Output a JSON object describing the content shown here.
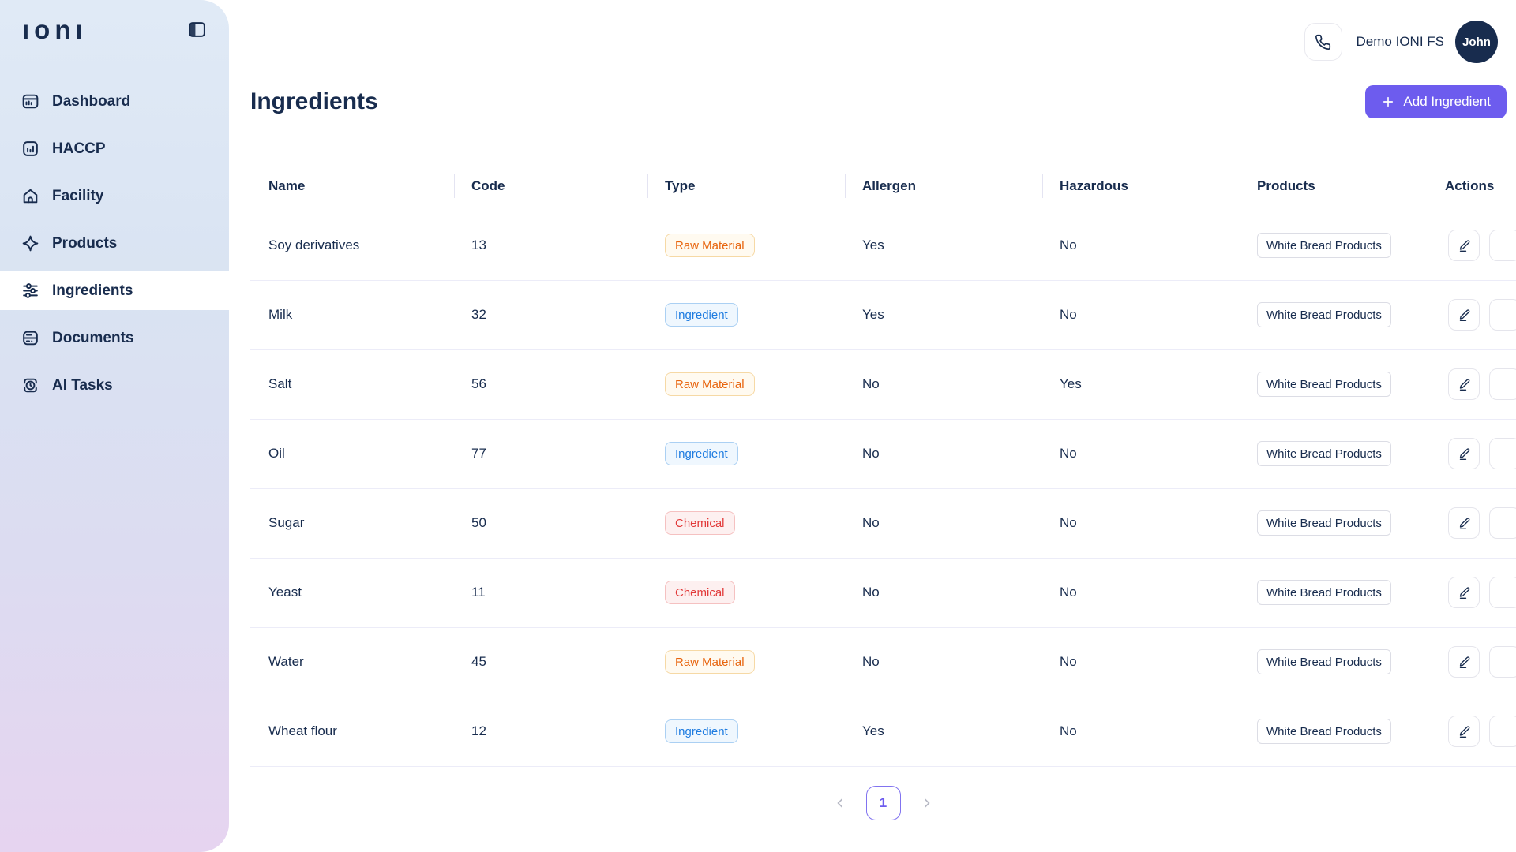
{
  "sidebar": {
    "logo_text": "ıonı",
    "items": [
      {
        "label": "Dashboard",
        "icon": "icon-dashboard",
        "active": false
      },
      {
        "label": "HACCP",
        "icon": "icon-haccp",
        "active": false
      },
      {
        "label": "Facility",
        "icon": "icon-facility",
        "active": false
      },
      {
        "label": "Products",
        "icon": "icon-products",
        "active": false
      },
      {
        "label": "Ingredients",
        "icon": "icon-ingredients",
        "active": true
      },
      {
        "label": "Documents",
        "icon": "icon-documents",
        "active": false
      },
      {
        "label": "AI Tasks",
        "icon": "icon-ai-tasks",
        "active": false
      }
    ]
  },
  "header": {
    "workspace_name": "Demo IONI FS",
    "user_name": "John"
  },
  "page": {
    "title": "Ingredients",
    "add_button_label": "Add Ingredient"
  },
  "table": {
    "columns": [
      "Name",
      "Code",
      "Type",
      "Allergen",
      "Hazardous",
      "Products",
      "Actions"
    ],
    "rows": [
      {
        "name": "Soy derivatives",
        "code": "13",
        "type": "Raw Material",
        "allergen": "Yes",
        "hazardous": "No",
        "products": "White Bread Products"
      },
      {
        "name": "Milk",
        "code": "32",
        "type": "Ingredient",
        "allergen": "Yes",
        "hazardous": "No",
        "products": "White Bread Products"
      },
      {
        "name": "Salt",
        "code": "56",
        "type": "Raw Material",
        "allergen": "No",
        "hazardous": "Yes",
        "products": "White Bread Products"
      },
      {
        "name": "Oil",
        "code": "77",
        "type": "Ingredient",
        "allergen": "No",
        "hazardous": "No",
        "products": "White Bread Products"
      },
      {
        "name": "Sugar",
        "code": "50",
        "type": "Chemical",
        "allergen": "No",
        "hazardous": "No",
        "products": "White Bread Products"
      },
      {
        "name": "Yeast",
        "code": "11",
        "type": "Chemical",
        "allergen": "No",
        "hazardous": "No",
        "products": "White Bread Products"
      },
      {
        "name": "Water",
        "code": "45",
        "type": "Raw Material",
        "allergen": "No",
        "hazardous": "No",
        "products": "White Bread Products"
      },
      {
        "name": "Wheat flour",
        "code": "12",
        "type": "Ingredient",
        "allergen": "Yes",
        "hazardous": "No",
        "products": "White Bread Products"
      }
    ]
  },
  "pagination": {
    "current_page": "1"
  },
  "colors": {
    "accent": "#6d5cee",
    "navy_text": "#182c4e",
    "pagination_active_border": "#8173f0",
    "badge_raw_material": {
      "text": "#e8650f",
      "bg": "#fffaf0",
      "border": "#f6d9a5"
    },
    "badge_ingredient": {
      "text": "#1f7ce0",
      "bg": "#eff7fe",
      "border": "#abd0f3"
    },
    "badge_chemical": {
      "text": "#e23a3a",
      "bg": "#fdf0f0",
      "border": "#f5c1c1"
    }
  }
}
